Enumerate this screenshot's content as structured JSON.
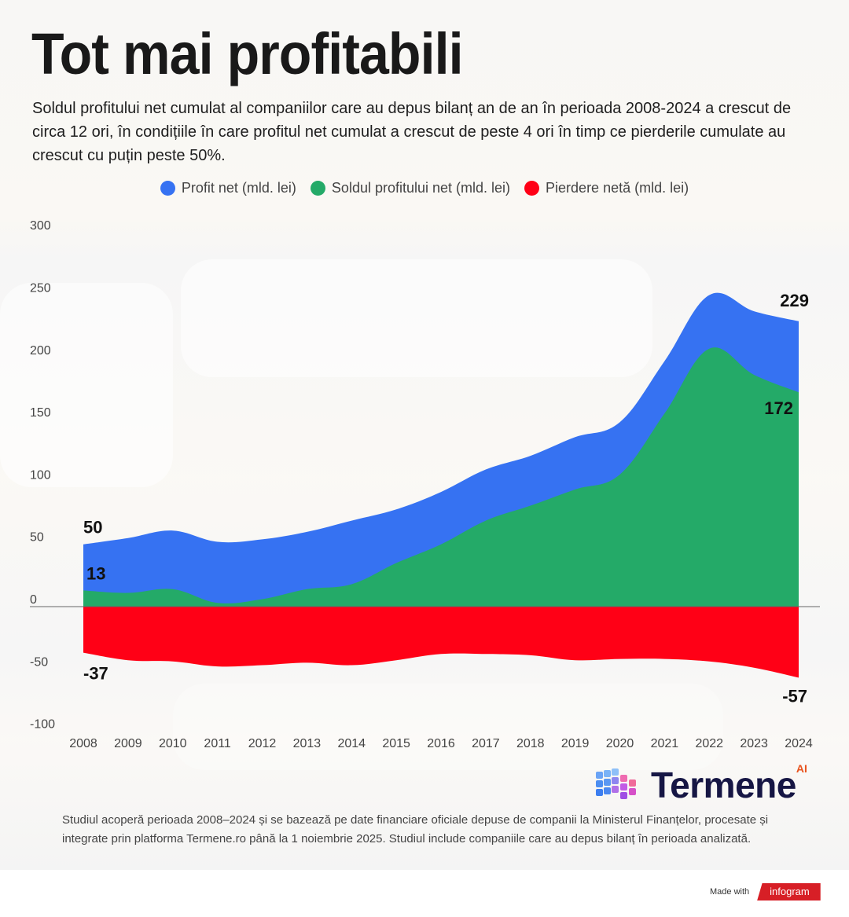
{
  "header": {
    "title": "Tot mai profitabili",
    "subtitle": "Soldul profitului net cumulat al companiilor care au depus bilanț an de an în perioada 2008-2024 a crescut de circa 12 ori, în condițiile în care profitul net cumulat a crescut de peste 4 ori în timp ce pierderile cumulate au crescut cu puțin peste 50%."
  },
  "legend": [
    {
      "label": "Profit net (mld. lei)",
      "color": "#3672f2"
    },
    {
      "label": "Soldul profitului net (mld. lei)",
      "color": "#24aa68"
    },
    {
      "label": "Pierdere netă (mld. lei)",
      "color": "#ff0016"
    }
  ],
  "chart_data": {
    "type": "area",
    "title": "Tot mai profitabili",
    "xlabel": "",
    "ylabel": "",
    "x": [
      2008,
      2009,
      2010,
      2011,
      2012,
      2013,
      2014,
      2015,
      2016,
      2017,
      2018,
      2019,
      2020,
      2021,
      2022,
      2023,
      2024
    ],
    "ylim": [
      -100,
      300
    ],
    "yticks": [
      300,
      250,
      200,
      150,
      100,
      50,
      0,
      -50,
      -100
    ],
    "grid": false,
    "legend_position": "top-center",
    "series": [
      {
        "name": "Profit net (mld. lei)",
        "color": "#3672f2",
        "values": [
          50,
          55,
          61,
          52,
          54,
          60,
          69,
          78,
          92,
          110,
          121,
          136,
          148,
          197,
          250,
          237,
          229
        ]
      },
      {
        "name": "Soldul profitului net (mld. lei)",
        "color": "#24aa68",
        "values": [
          13,
          11,
          14,
          3,
          6,
          14,
          18,
          35,
          50,
          69,
          81,
          94,
          106,
          155,
          207,
          186,
          172
        ]
      },
      {
        "name": "Pierdere netă (mld. lei)",
        "color": "#ff0016",
        "values": [
          -37,
          -43,
          -44,
          -48,
          -47,
          -45,
          -47,
          -43,
          -38,
          -38,
          -39,
          -43,
          -42,
          -42,
          -44,
          -49,
          -57
        ]
      }
    ],
    "annotations": [
      {
        "series": "Profit net (mld. lei)",
        "x": 2008,
        "text": "50"
      },
      {
        "series": "Soldul profitului net (mld. lei)",
        "x": 2008,
        "text": "13"
      },
      {
        "series": "Pierdere netă (mld. lei)",
        "x": 2008,
        "text": "-37"
      },
      {
        "series": "Profit net (mld. lei)",
        "x": 2024,
        "text": "229"
      },
      {
        "series": "Soldul profitului net (mld. lei)",
        "x": 2024,
        "text": "172"
      },
      {
        "series": "Pierdere netă (mld. lei)",
        "x": 2024,
        "text": "-57"
      }
    ]
  },
  "brand": {
    "logo_text": "Termene",
    "logo_suffix": "AI"
  },
  "footnote": "Studiul acoperă perioada 2008–2024 și se bazează pe date financiare oficiale depuse de companii la Ministerul Finanțelor, procesate și integrate prin platforma Termene.ro până la 1 noiembrie 2025. Studiul include  companiile care au depus bilanț în perioada analizată.",
  "credit": {
    "made_with": "Made with",
    "tool": "infogram"
  }
}
